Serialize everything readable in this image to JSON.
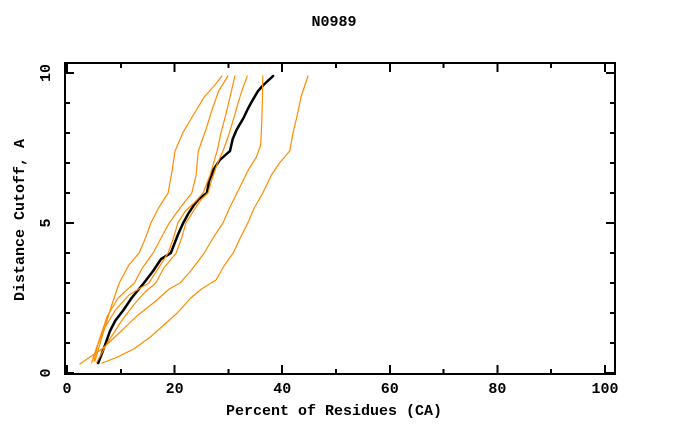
{
  "chart_data": {
    "type": "line",
    "title": "N0989",
    "xlabel": "Percent of Residues (CA)",
    "ylabel": "Distance Cutoff, A",
    "xlim": [
      0,
      100
    ],
    "ylim": [
      0,
      10
    ],
    "grid": false,
    "legend": "none",
    "x_major_ticks": [
      0,
      20,
      40,
      60,
      80,
      100
    ],
    "x_minor_ticks": [
      10,
      30,
      50,
      70,
      90
    ],
    "y_major_ticks": [
      0,
      5,
      10
    ],
    "y_minor_ticks": [
      1,
      2,
      3,
      4,
      6,
      7,
      8,
      9
    ],
    "colors": {
      "model_curve": "#ff8c00",
      "highlight_curve": "#000000",
      "axis": "#000000"
    },
    "series": [
      {
        "name": "black-curve",
        "color": "#000000",
        "width": 2.5,
        "points": [
          [
            5.8,
            0.33
          ],
          [
            6.8,
            0.8
          ],
          [
            8.0,
            1.4
          ],
          [
            9.0,
            1.75
          ],
          [
            10.5,
            2.1
          ],
          [
            12.0,
            2.5
          ],
          [
            14.3,
            3.0
          ],
          [
            16.0,
            3.4
          ],
          [
            17.5,
            3.8
          ],
          [
            19.3,
            4.0
          ],
          [
            20.6,
            4.6
          ],
          [
            21.6,
            5.0
          ],
          [
            22.5,
            5.3
          ],
          [
            23.6,
            5.6
          ],
          [
            24.5,
            5.8
          ],
          [
            26.0,
            6.0
          ],
          [
            26.4,
            6.4
          ],
          [
            27.3,
            6.8
          ],
          [
            28.4,
            7.1
          ],
          [
            30.3,
            7.4
          ],
          [
            30.8,
            7.8
          ],
          [
            31.5,
            8.1
          ],
          [
            32.8,
            8.5
          ],
          [
            33.6,
            8.8
          ],
          [
            34.2,
            9.0
          ],
          [
            35.5,
            9.4
          ],
          [
            36.5,
            9.6
          ],
          [
            38.3,
            9.9
          ]
        ]
      },
      {
        "name": "orange-curve-1",
        "color": "#ff8c00",
        "width": 1.2,
        "points": [
          [
            5.2,
            0.4
          ],
          [
            6.0,
            0.9
          ],
          [
            7.0,
            1.5
          ],
          [
            8.2,
            2.2
          ],
          [
            9.7,
            3.0
          ],
          [
            11.5,
            3.6
          ],
          [
            13.4,
            4.0
          ],
          [
            14.6,
            4.5
          ],
          [
            15.6,
            5.0
          ],
          [
            17.0,
            5.5
          ],
          [
            18.8,
            6.0
          ],
          [
            19.5,
            6.7
          ],
          [
            20.1,
            7.4
          ],
          [
            21.5,
            8.0
          ],
          [
            23.5,
            8.6
          ],
          [
            25.5,
            9.2
          ],
          [
            27.5,
            9.6
          ],
          [
            28.8,
            9.9
          ]
        ]
      },
      {
        "name": "orange-curve-2",
        "color": "#ff8c00",
        "width": 1.2,
        "points": [
          [
            5.0,
            0.4
          ],
          [
            5.8,
            1.0
          ],
          [
            7.5,
            1.9
          ],
          [
            9.5,
            2.5
          ],
          [
            12.5,
            3.0
          ],
          [
            14.0,
            3.5
          ],
          [
            16.0,
            4.0
          ],
          [
            17.5,
            4.5
          ],
          [
            19.0,
            5.0
          ],
          [
            21.0,
            5.5
          ],
          [
            23.2,
            6.0
          ],
          [
            24.0,
            6.6
          ],
          [
            24.4,
            7.4
          ],
          [
            25.8,
            8.1
          ],
          [
            27.0,
            8.8
          ],
          [
            28.2,
            9.4
          ],
          [
            29.9,
            9.9
          ]
        ]
      },
      {
        "name": "orange-curve-3",
        "color": "#ff8c00",
        "width": 1.2,
        "points": [
          [
            4.6,
            0.35
          ],
          [
            5.6,
            0.9
          ],
          [
            7.0,
            1.5
          ],
          [
            9.0,
            2.1
          ],
          [
            11.5,
            2.6
          ],
          [
            15.2,
            3.0
          ],
          [
            17.0,
            3.5
          ],
          [
            18.8,
            4.0
          ],
          [
            19.8,
            4.5
          ],
          [
            20.6,
            5.0
          ],
          [
            22.0,
            5.4
          ],
          [
            23.8,
            5.7
          ],
          [
            25.3,
            6.0
          ],
          [
            26.6,
            6.6
          ],
          [
            27.9,
            7.4
          ],
          [
            28.6,
            8.0
          ],
          [
            29.5,
            8.6
          ],
          [
            30.3,
            9.2
          ],
          [
            31.2,
            9.9
          ]
        ]
      },
      {
        "name": "orange-curve-4",
        "color": "#ff8c00",
        "width": 1.2,
        "points": [
          [
            5.5,
            0.35
          ],
          [
            7.5,
            1.0
          ],
          [
            10.0,
            1.7
          ],
          [
            12.5,
            2.3
          ],
          [
            14.5,
            2.7
          ],
          [
            16.5,
            3.0
          ],
          [
            18.0,
            3.5
          ],
          [
            20.3,
            4.0
          ],
          [
            21.3,
            4.5
          ],
          [
            22.1,
            5.0
          ],
          [
            23.5,
            5.4
          ],
          [
            25.0,
            5.8
          ],
          [
            26.2,
            6.0
          ],
          [
            27.0,
            6.5
          ],
          [
            28.0,
            7.0
          ],
          [
            29.0,
            7.4
          ],
          [
            30.0,
            7.9
          ],
          [
            31.0,
            8.5
          ],
          [
            31.8,
            9.0
          ],
          [
            32.5,
            9.4
          ],
          [
            33.5,
            9.9
          ]
        ]
      },
      {
        "name": "orange-curve-5",
        "color": "#ff8c00",
        "width": 1.2,
        "points": [
          [
            2.4,
            0.3
          ],
          [
            4.0,
            0.5
          ],
          [
            6.5,
            0.8
          ],
          [
            9.5,
            1.3
          ],
          [
            13.0,
            1.9
          ],
          [
            16.5,
            2.4
          ],
          [
            19.0,
            2.8
          ],
          [
            21.0,
            3.0
          ],
          [
            23.0,
            3.4
          ],
          [
            25.5,
            4.0
          ],
          [
            27.5,
            4.6
          ],
          [
            29.0,
            5.0
          ],
          [
            30.2,
            5.5
          ],
          [
            31.6,
            6.0
          ],
          [
            33.8,
            6.8
          ],
          [
            35.2,
            7.2
          ],
          [
            36.0,
            7.6
          ],
          [
            36.2,
            8.4
          ],
          [
            36.3,
            9.0
          ],
          [
            36.4,
            9.9
          ]
        ]
      },
      {
        "name": "orange-curve-6",
        "color": "#ff8c00",
        "width": 1.2,
        "points": [
          [
            6.5,
            0.33
          ],
          [
            9.0,
            0.5
          ],
          [
            12.4,
            0.8
          ],
          [
            15.5,
            1.2
          ],
          [
            18.0,
            1.6
          ],
          [
            20.5,
            2.0
          ],
          [
            23.0,
            2.5
          ],
          [
            25.0,
            2.8
          ],
          [
            27.7,
            3.1
          ],
          [
            29.3,
            3.6
          ],
          [
            30.9,
            4.0
          ],
          [
            32.2,
            4.5
          ],
          [
            33.6,
            5.0
          ],
          [
            34.8,
            5.5
          ],
          [
            36.4,
            6.0
          ],
          [
            38.0,
            6.6
          ],
          [
            39.5,
            7.0
          ],
          [
            41.4,
            7.4
          ],
          [
            42.0,
            8.0
          ],
          [
            42.8,
            8.6
          ],
          [
            43.5,
            9.2
          ],
          [
            44.8,
            9.9
          ]
        ]
      }
    ]
  }
}
